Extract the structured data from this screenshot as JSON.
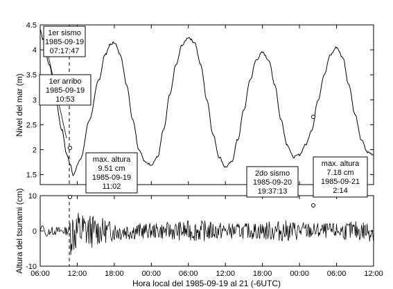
{
  "chart_data": [
    {
      "type": "line",
      "ylabel": "Nivel del mar (m)",
      "ylim": [
        1.3,
        4.5
      ],
      "xlim": [
        "1985-09-19 06:00",
        "1985-09-21 12:00"
      ],
      "yticks": [
        "1.5",
        "2",
        "2.5",
        "3",
        "3.5",
        "4",
        "4.5"
      ],
      "series_keypoints": {
        "x": [
          "1985-09-19 06:00",
          "1985-09-19 06:30",
          "1985-09-19 07:30",
          "1985-09-19 08:30",
          "1985-09-19 09:30",
          "1985-09-19 10:20",
          "1985-09-19 10:53",
          "1985-09-19 11:20",
          "1985-09-19 12:30",
          "1985-09-19 14:00",
          "1985-09-19 15:30",
          "1985-09-19 16:30",
          "1985-09-19 17:20",
          "1985-09-19 18:00",
          "1985-09-19 19:00",
          "1985-09-19 20:00",
          "1985-09-19 21:00",
          "1985-09-19 22:00",
          "1985-09-19 23:00",
          "1985-09-20 00:00",
          "1985-09-20 01:00",
          "1985-09-20 02:00",
          "1985-09-20 03:00",
          "1985-09-20 04:00",
          "1985-09-20 05:00",
          "1985-09-20 06:00",
          "1985-09-20 07:00",
          "1985-09-20 08:00",
          "1985-09-20 09:00",
          "1985-09-20 10:00",
          "1985-09-20 11:00",
          "1985-09-20 12:00",
          "1985-09-20 13:00",
          "1985-09-20 14:00",
          "1985-09-20 15:00",
          "1985-09-20 16:00",
          "1985-09-20 17:00",
          "1985-09-20 18:00",
          "1985-09-20 19:00",
          "1985-09-20 20:00",
          "1985-09-20 21:00",
          "1985-09-20 22:00",
          "1985-09-20 23:00",
          "1985-09-21 00:00",
          "1985-09-21 01:00",
          "1985-09-21 02:00",
          "1985-09-21 03:00",
          "1985-09-21 04:00",
          "1985-09-21 05:00",
          "1985-09-21 06:00",
          "1985-09-21 07:00",
          "1985-09-21 08:00",
          "1985-09-21 09:00",
          "1985-09-21 10:00",
          "1985-09-21 11:00",
          "1985-09-21 12:00"
        ],
        "y": [
          4.4,
          4.2,
          3.7,
          3.0,
          2.4,
          1.9,
          1.7,
          1.5,
          1.8,
          2.6,
          3.4,
          3.9,
          4.1,
          4.15,
          3.9,
          3.3,
          2.6,
          2.0,
          1.75,
          1.7,
          1.85,
          2.4,
          3.1,
          3.7,
          4.1,
          4.25,
          4.15,
          3.7,
          3.0,
          2.3,
          1.85,
          1.65,
          1.75,
          2.2,
          2.8,
          3.4,
          3.8,
          3.95,
          3.8,
          3.3,
          2.6,
          2.1,
          1.85,
          1.9,
          2.1,
          2.4,
          3.0,
          3.5,
          3.9,
          4.05,
          3.85,
          3.3,
          2.7,
          2.2,
          1.95,
          1.9
        ]
      }
    },
    {
      "type": "line",
      "xlabel": "Hora local del 1985-09-19 al 21 (-6UTC)",
      "ylabel": "Altura del tsunami (cm)",
      "ylim": [
        -10,
        10
      ],
      "yticks": [
        "-10",
        "0",
        "10"
      ],
      "xticks": [
        "06:00",
        "12:00",
        "18:00",
        "00:00",
        "06:00",
        "12:00",
        "18:00",
        "00:00",
        "06:00",
        "12:00"
      ],
      "max_points": [
        {
          "x": "1985-09-19 11:02",
          "y": 9.51
        },
        {
          "x": "1985-09-21 02:14",
          "y": 7.18
        }
      ]
    }
  ],
  "annotations": {
    "sismo1": [
      "1er sismo",
      "1985-09-19",
      "07:17:47"
    ],
    "arribo": [
      "1er arribo",
      "1985-09-19",
      "10:53"
    ],
    "max1": [
      "max. altura",
      "9.51 cm",
      "1985-09-19",
      "11:02"
    ],
    "sismo2": [
      "2do sismo",
      "1985-09-20",
      "19:37:13"
    ],
    "max2": [
      "max. altura",
      "7.18 cm",
      "1985-09-21",
      "2:14"
    ]
  }
}
